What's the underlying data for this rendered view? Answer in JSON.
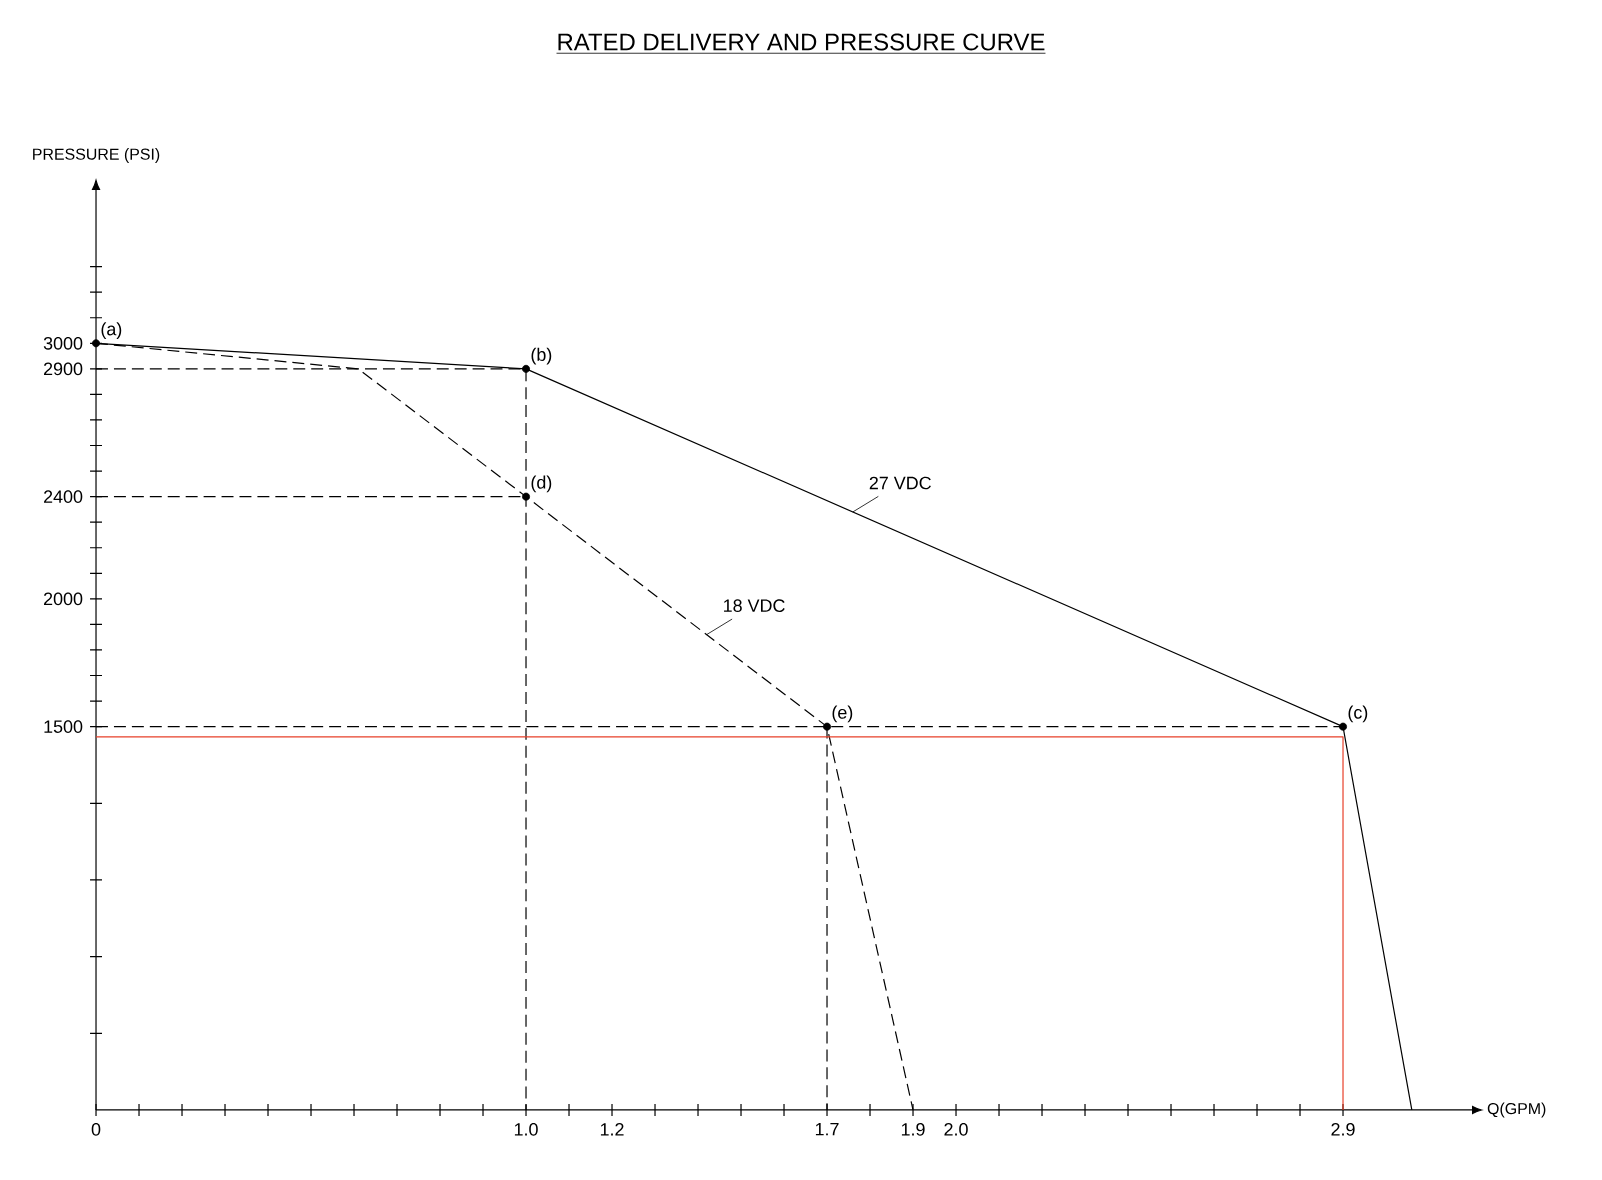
{
  "chart_data": {
    "type": "line",
    "title": "RATED DELIVERY AND PRESSURE CURVE",
    "ylabel": "PRESSURE (PSI)",
    "xlabel": "Q(GPM)",
    "xlim": [
      0,
      3.2
    ],
    "ylim": [
      0,
      3600
    ],
    "xticks": [
      0,
      {
        "value": 0.1,
        "label": null
      },
      {
        "value": 0.2,
        "label": null
      },
      {
        "value": 0.3,
        "label": null
      },
      {
        "value": 0.4,
        "label": null
      },
      {
        "value": 0.5,
        "label": null
      },
      {
        "value": 0.6,
        "label": null
      },
      {
        "value": 0.7,
        "label": null
      },
      {
        "value": 0.8,
        "label": null
      },
      {
        "value": 0.9,
        "label": null
      },
      {
        "value": 1,
        "label": "1.0"
      },
      {
        "value": 1.1,
        "label": null
      },
      1.2,
      {
        "value": 1.3,
        "label": null
      },
      {
        "value": 1.4,
        "label": null
      },
      {
        "value": 1.5,
        "label": null
      },
      {
        "value": 1.6,
        "label": null
      },
      1.7,
      {
        "value": 1.8,
        "label": null
      },
      1.9,
      {
        "value": 2,
        "label": "2.0"
      },
      {
        "value": 2.1,
        "label": null
      },
      {
        "value": 2.2,
        "label": null
      },
      {
        "value": 2.3,
        "label": null
      },
      {
        "value": 2.4,
        "label": null
      },
      {
        "value": 2.5,
        "label": null
      },
      {
        "value": 2.6,
        "label": null
      },
      {
        "value": 2.7,
        "label": null
      },
      {
        "value": 2.8,
        "label": null
      },
      2.9
    ],
    "yticks": [
      {
        "value": 300,
        "label": null
      },
      {
        "value": 600,
        "label": null
      },
      {
        "value": 900,
        "label": null
      },
      {
        "value": 1200,
        "label": null
      },
      1500,
      {
        "value": 1600,
        "label": null
      },
      {
        "value": 1700,
        "label": null
      },
      {
        "value": 1800,
        "label": null
      },
      {
        "value": 1900,
        "label": null
      },
      2000,
      {
        "value": 2100,
        "label": null
      },
      {
        "value": 2200,
        "label": null
      },
      {
        "value": 2300,
        "label": null
      },
      2400,
      {
        "value": 2500,
        "label": null
      },
      {
        "value": 2600,
        "label": null
      },
      {
        "value": 2700,
        "label": null
      },
      {
        "value": 2800,
        "label": null
      },
      2900,
      3000,
      {
        "value": 3100,
        "label": null
      },
      {
        "value": 3200,
        "label": null
      },
      {
        "value": 3300,
        "label": null
      }
    ],
    "grid": false,
    "series": [
      {
        "name": "27 VDC",
        "type": "line",
        "color": "#000000",
        "line_style": "solid",
        "x": [
          0,
          1,
          2.9,
          3.06
        ],
        "values": [
          3000,
          2900,
          1500,
          0
        ]
      },
      {
        "name": "18 VDC",
        "type": "line",
        "color": "#000000",
        "line_style": "dashed",
        "x": [
          0,
          0.61,
          1,
          1.7,
          1.9
        ],
        "values": [
          3000,
          2900,
          2400,
          1500,
          0
        ]
      },
      {
        "type": "line",
        "color": "#000000",
        "line_style": "dashed",
        "x": [
          0,
          1,
          1
        ],
        "values": [
          2900,
          2900,
          0
        ]
      },
      {
        "type": "line",
        "color": "#000000",
        "line_style": "dashed",
        "x": [
          0,
          1
        ],
        "values": [
          2400,
          2400
        ]
      },
      {
        "type": "line",
        "color": "#000000",
        "line_style": "dashed",
        "x": [
          0,
          2.9
        ],
        "values": [
          1500,
          1500
        ]
      },
      {
        "type": "line",
        "color": "#000000",
        "line_style": "dashed",
        "x": [
          1.7,
          1.7
        ],
        "values": [
          1500,
          0
        ]
      },
      {
        "type": "line",
        "color": "#e8402a",
        "line_style": "solid",
        "x": [
          0,
          2.9,
          2.9
        ],
        "values": [
          1460,
          1460,
          0
        ]
      },
      {
        "type": "scatter",
        "color": "#000000",
        "marker": "circle",
        "x": [
          0,
          1,
          2.9,
          1,
          1.7
        ],
        "values": [
          3000,
          2900,
          1500,
          2400,
          1500
        ]
      }
    ],
    "annotations": [
      {
        "text": "(a)",
        "x": 0,
        "y": 3000
      },
      {
        "text": "(b)",
        "x": 1,
        "y": 2900
      },
      {
        "text": "(c)",
        "x": 2.9,
        "y": 1500
      },
      {
        "text": "(d)",
        "x": 1,
        "y": 2400
      },
      {
        "text": "(e)",
        "x": 1.7,
        "y": 1500
      }
    ]
  }
}
